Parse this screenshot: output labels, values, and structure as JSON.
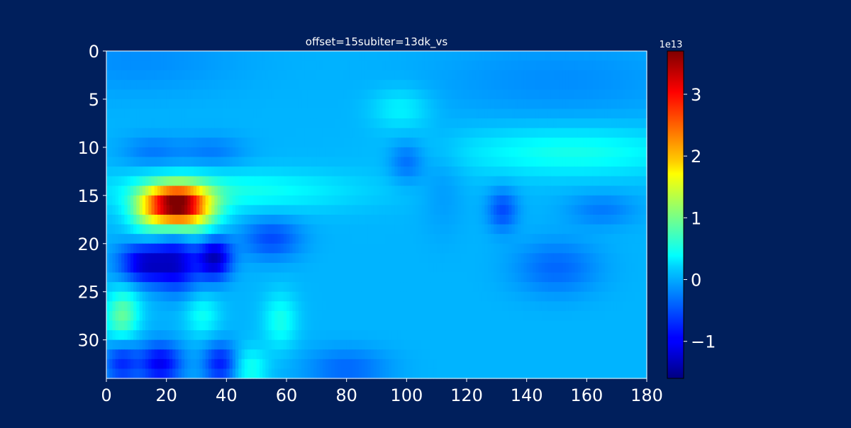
{
  "colors": {
    "background": "#001f5c",
    "text": "#ffffff",
    "axis_line": "#ffffff",
    "colormap": "jet"
  },
  "chart_data": {
    "type": "heatmap",
    "title": "offset=15subiter=13dk_vs",
    "xlabel": "",
    "ylabel": "",
    "xlim": [
      0,
      180
    ],
    "ylim": [
      34,
      0
    ],
    "x_ticks": [
      0,
      20,
      40,
      60,
      80,
      100,
      120,
      140,
      160,
      180
    ],
    "x_tick_labels": [
      "0",
      "20",
      "40",
      "60",
      "80",
      "100",
      "120",
      "140",
      "160",
      "180"
    ],
    "y_ticks": [
      0,
      5,
      10,
      15,
      20,
      25,
      30
    ],
    "y_tick_labels": [
      "0",
      "5",
      "10",
      "15",
      "20",
      "25",
      "30"
    ],
    "grid": false,
    "colorbar": {
      "label": "",
      "exponent_label": "1e13",
      "scale": 10000000000000.0,
      "vmin": -1.6,
      "vmax": 3.7,
      "ticks": [
        -1,
        0,
        1,
        2,
        3
      ],
      "tick_labels": [
        "−1",
        "0",
        "1",
        "2",
        "3"
      ]
    },
    "value_units": "×1e13",
    "grid_shape": {
      "rows": 34,
      "cols": 180
    },
    "background_value": 0.0,
    "features": [
      {
        "row": 1.0,
        "col": 10.0,
        "value": -0.2,
        "sigma_row": 2.5,
        "sigma_col": 25.0
      },
      {
        "row": 3.0,
        "col": 150.0,
        "value": -0.2,
        "sigma_row": 3.0,
        "sigma_col": 30.0
      },
      {
        "row": 6.0,
        "col": 98.0,
        "value": 0.35,
        "sigma_row": 1.5,
        "sigma_col": 7.0
      },
      {
        "row": 10.5,
        "col": 15.0,
        "value": -0.3,
        "sigma_row": 1.2,
        "sigma_col": 7.0
      },
      {
        "row": 10.5,
        "col": 35.0,
        "value": -0.3,
        "sigma_row": 1.2,
        "sigma_col": 8.0
      },
      {
        "row": 11.5,
        "col": 100.0,
        "value": -0.4,
        "sigma_row": 1.5,
        "sigma_col": 4.0
      },
      {
        "row": 10.5,
        "col": 155.0,
        "value": 0.5,
        "sigma_row": 1.8,
        "sigma_col": 28.0
      },
      {
        "row": 14.5,
        "col": 40.0,
        "value": 0.5,
        "sigma_row": 1.5,
        "sigma_col": 30.0
      },
      {
        "row": 14.0,
        "col": 112.0,
        "value": -0.15,
        "sigma_row": 3.5,
        "sigma_col": 5.0
      },
      {
        "row": 16.0,
        "col": 23.0,
        "value": 3.3,
        "sigma_row": 1.4,
        "sigma_col": 7.0
      },
      {
        "row": 17.0,
        "col": 30.0,
        "value": 0.7,
        "sigma_row": 2.0,
        "sigma_col": 6.0
      },
      {
        "row": 17.0,
        "col": 14.0,
        "value": 0.6,
        "sigma_row": 2.0,
        "sigma_col": 5.0
      },
      {
        "row": 16.5,
        "col": 132.0,
        "value": -0.55,
        "sigma_row": 1.5,
        "sigma_col": 3.5
      },
      {
        "row": 16.5,
        "col": 165.0,
        "value": -0.3,
        "sigma_row": 1.2,
        "sigma_col": 8.0
      },
      {
        "row": 19.5,
        "col": 55.0,
        "value": -0.55,
        "sigma_row": 1.5,
        "sigma_col": 7.0
      },
      {
        "row": 22.0,
        "col": 13.0,
        "value": -1.2,
        "sigma_row": 1.5,
        "sigma_col": 6.0
      },
      {
        "row": 22.0,
        "col": 24.0,
        "value": -1.0,
        "sigma_row": 2.0,
        "sigma_col": 5.0
      },
      {
        "row": 21.5,
        "col": 36.0,
        "value": -1.3,
        "sigma_row": 1.5,
        "sigma_col": 4.0
      },
      {
        "row": 22.5,
        "col": 150.0,
        "value": -0.4,
        "sigma_row": 2.0,
        "sigma_col": 10.0
      },
      {
        "row": 26.0,
        "col": 6.0,
        "value": 0.4,
        "sigma_row": 1.5,
        "sigma_col": 4.0
      },
      {
        "row": 28.0,
        "col": 5.0,
        "value": 0.7,
        "sigma_row": 1.5,
        "sigma_col": 4.0
      },
      {
        "row": 27.5,
        "col": 32.0,
        "value": 0.45,
        "sigma_row": 1.5,
        "sigma_col": 4.0
      },
      {
        "row": 28.0,
        "col": 58.0,
        "value": 0.5,
        "sigma_row": 2.0,
        "sigma_col": 4.0
      },
      {
        "row": 32.5,
        "col": 5.0,
        "value": -0.7,
        "sigma_row": 1.5,
        "sigma_col": 4.0
      },
      {
        "row": 32.5,
        "col": 18.0,
        "value": -1.0,
        "sigma_row": 1.5,
        "sigma_col": 5.0
      },
      {
        "row": 32.5,
        "col": 38.0,
        "value": -0.8,
        "sigma_row": 1.5,
        "sigma_col": 4.0
      },
      {
        "row": 33.0,
        "col": 48.0,
        "value": 0.5,
        "sigma_row": 1.5,
        "sigma_col": 4.0
      },
      {
        "row": 33.0,
        "col": 80.0,
        "value": -0.4,
        "sigma_row": 1.5,
        "sigma_col": 10.0
      }
    ]
  }
}
